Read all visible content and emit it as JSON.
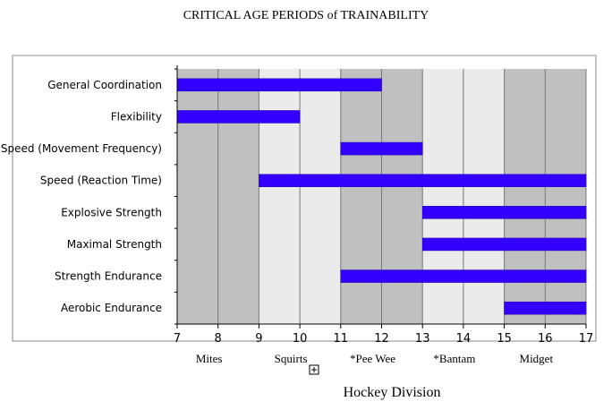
{
  "chart_data": {
    "type": "bar",
    "orientation": "horizontal-range",
    "title": "CRITICAL AGE PERIODS of TRAINABILITY",
    "xlabel": "Hockey Division",
    "xlim": [
      7,
      17
    ],
    "xticks": [
      7,
      8,
      9,
      10,
      11,
      12,
      13,
      14,
      15,
      16,
      17
    ],
    "categories": [
      "General Coordination",
      "Flexibility",
      "Speed (Movement Frequency)",
      "Speed (Reaction Time)",
      "Explosive Strength",
      "Maximal Strength",
      "Strength Endurance",
      "Aerobic Endurance"
    ],
    "ranges": [
      [
        7,
        12
      ],
      [
        7,
        10
      ],
      [
        11,
        13
      ],
      [
        9,
        17
      ],
      [
        13,
        17
      ],
      [
        13,
        17
      ],
      [
        11,
        17
      ],
      [
        15,
        17
      ]
    ],
    "divisions": [
      {
        "label": "Mites",
        "from": 7,
        "to": 9,
        "shade": "dark"
      },
      {
        "label": "Squirts",
        "from": 9,
        "to": 11,
        "shade": "light"
      },
      {
        "label": "*Pee Wee",
        "from": 11,
        "to": 13,
        "shade": "dark"
      },
      {
        "label": "*Bantam",
        "from": 13,
        "to": 15,
        "shade": "light"
      },
      {
        "label": "Midget",
        "from": 15,
        "to": 17,
        "shade": "dark"
      }
    ],
    "colors": {
      "bar": "#3300ff",
      "band_dark": "#c0c0c0",
      "band_light": "#ebebeb",
      "gridline": "#777777"
    },
    "grid": true
  },
  "icons": {
    "expand": "plus-box-icon"
  }
}
